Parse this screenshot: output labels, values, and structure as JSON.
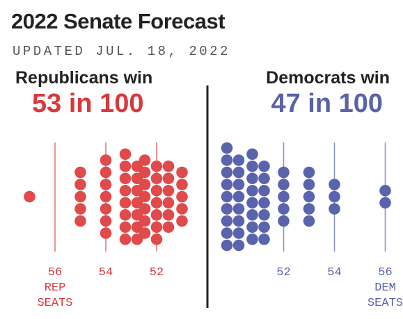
{
  "header": {
    "title": "2022 Senate Forecast",
    "updated": "UPDATED JUL. 18, 2022"
  },
  "sides": {
    "rep": {
      "label": "Republicans win",
      "odds": "53 in 100"
    },
    "dem": {
      "label": "Democrats win",
      "odds": "47 in 100"
    }
  },
  "colors": {
    "rep": "#e04a4a",
    "rep_text": "#d7393c",
    "rep_line": "#e07b7b",
    "dem": "#5a64ad",
    "dem_text": "#5963a8",
    "dem_line": "#8a91c4",
    "center_line": "#222222"
  },
  "chart_data": {
    "type": "scatter",
    "title": "2022 Senate Forecast",
    "subtitle": "UPDATED JUL. 18, 2022",
    "note": "Dot plot of 100 simulated outcomes; each dot is one outcome, placed by the winning party's seat count.",
    "rep_ticks": [
      {
        "seats": 56,
        "label": "56",
        "sub": [
          "REP",
          "SEATS"
        ]
      },
      {
        "seats": 54,
        "label": "54",
        "sub": []
      },
      {
        "seats": 52,
        "label": "52",
        "sub": []
      }
    ],
    "dem_ticks": [
      {
        "seats": 52,
        "label": "52",
        "sub": []
      },
      {
        "seats": 54,
        "label": "54",
        "sub": []
      },
      {
        "seats": 56,
        "label": "56",
        "sub": [
          "DEM",
          "SEATS"
        ]
      }
    ],
    "series": [
      {
        "party": "rep",
        "outcome_counts": [
          {
            "seats": 57,
            "count": 1
          },
          {
            "seats": 55,
            "count": 5
          },
          {
            "seats": 54,
            "count": 7
          },
          {
            "seats": 53,
            "count": 15
          },
          {
            "seats": 52,
            "count": 20
          },
          {
            "seats": 51,
            "count": 5
          }
        ]
      },
      {
        "party": "dem",
        "outcome_counts": [
          {
            "seats": 50,
            "count": 17
          },
          {
            "seats": 51,
            "count": 15
          },
          {
            "seats": 52,
            "count": 5
          },
          {
            "seats": 53,
            "count": 5
          },
          {
            "seats": 54,
            "count": 3
          },
          {
            "seats": 56,
            "count": 2
          }
        ]
      }
    ]
  }
}
